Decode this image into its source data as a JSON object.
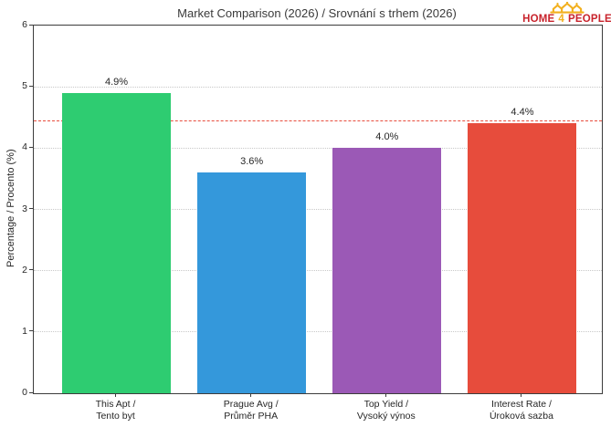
{
  "title": "Market Comparison (2026) / Srovnání s trhem (2026)",
  "logo": {
    "word_home": "HOME",
    "word_four": "4",
    "word_people": "PEOPLE",
    "red": "#c8232c",
    "gold": "#f2b01e",
    "crown_icon": "three-houses-crown"
  },
  "watermark": {
    "text": "HOME 4 PEOPLE",
    "crown_icon": "three-houses-crown"
  },
  "chart_data": {
    "type": "bar",
    "title": "Market Comparison (2026) / Srovnání s trhem (2026)",
    "categories": [
      "This Apt /\nTento byt",
      "Prague Avg /\nPrůměr PHA",
      "Top Yield /\nVysoký výnos",
      "Interest Rate /\nÚroková sazba"
    ],
    "values": [
      4.9,
      3.6,
      4.0,
      4.4
    ],
    "value_labels": [
      "4.9%",
      "3.6%",
      "4.0%",
      "4.4%"
    ],
    "bar_colors": [
      "#2ecc71",
      "#3498db",
      "#9b59b6",
      "#e74c3c"
    ],
    "xlabel": "",
    "ylabel": "Percentage / Procento (%)",
    "ylim": [
      0,
      6
    ],
    "yticks": [
      0,
      1,
      2,
      3,
      4,
      5,
      6
    ],
    "grid": "horizontal-dotted",
    "legend": "none",
    "reference_line": {
      "value": 4.45,
      "color": "#e74c3c",
      "style": "dashed"
    }
  }
}
